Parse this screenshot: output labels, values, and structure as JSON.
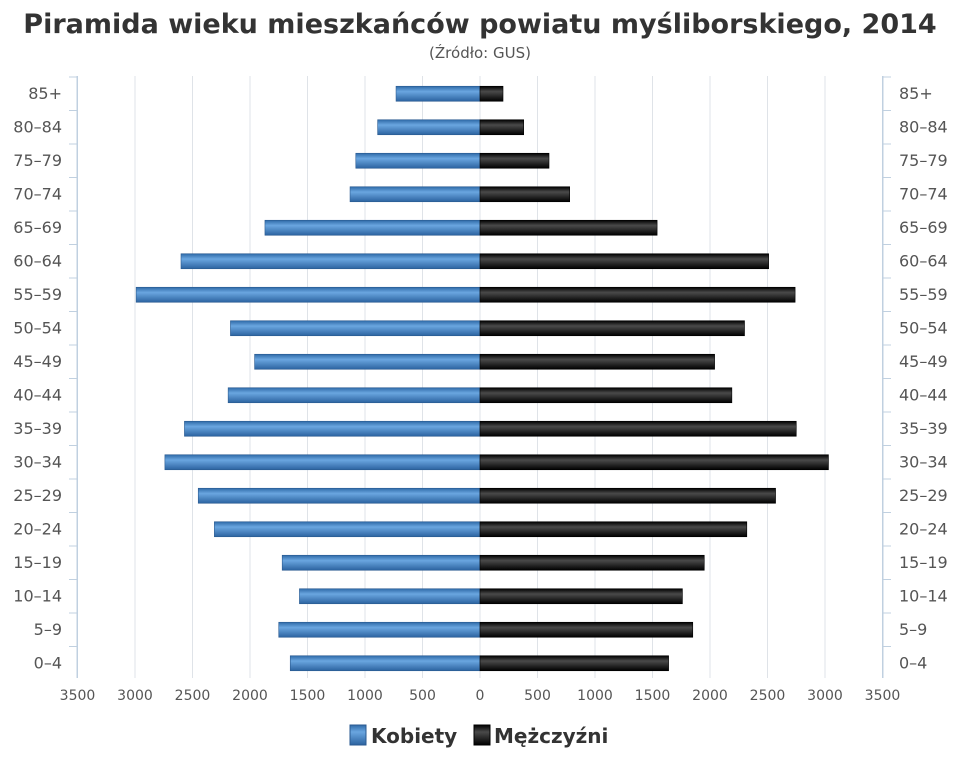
{
  "chart_data": {
    "type": "bar",
    "orientation": "horizontal-pyramid",
    "title": "Piramida wieku mieszkańców powiatu myśliborskiego, 2014",
    "subtitle": "(Źródło: GUS)",
    "categories": [
      "85+",
      "80–84",
      "75–79",
      "70–74",
      "65–69",
      "60–64",
      "55–59",
      "50–54",
      "45–49",
      "40–44",
      "35–39",
      "30–34",
      "25–29",
      "20–24",
      "15–19",
      "10–14",
      "5–9",
      "0–4"
    ],
    "series": [
      {
        "name": "Kobiety",
        "color": "#3f7fc1",
        "values": [
          730,
          890,
          1080,
          1130,
          1870,
          2600,
          2990,
          2170,
          1960,
          2190,
          2570,
          2740,
          2450,
          2310,
          1720,
          1570,
          1750,
          1650
        ]
      },
      {
        "name": "Mężczyźni",
        "color": "#1a1a1a",
        "values": [
          200,
          380,
          600,
          780,
          1540,
          2510,
          2740,
          2300,
          2040,
          2190,
          2750,
          3030,
          2570,
          2320,
          1950,
          1760,
          1850,
          1640
        ]
      }
    ],
    "xlim": [
      -3500,
      3500
    ],
    "x_ticks": [
      "3500",
      "3000",
      "2500",
      "2000",
      "1500",
      "1000",
      "500",
      "0",
      "500",
      "1000",
      "1500",
      "2000",
      "2500",
      "3000",
      "3500"
    ],
    "grid": true,
    "legend_position": "bottom-center"
  }
}
